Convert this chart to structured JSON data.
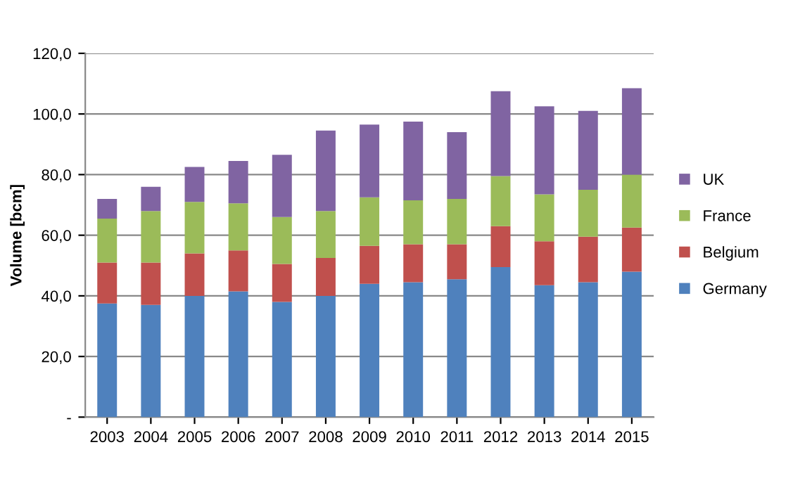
{
  "chart_data": {
    "type": "bar",
    "stacked": true,
    "ylabel": "Volume [bcm]",
    "categories": [
      "2003",
      "2004",
      "2005",
      "2006",
      "2007",
      "2008",
      "2009",
      "2010",
      "2011",
      "2012",
      "2013",
      "2014",
      "2015"
    ],
    "series": [
      {
        "name": "Germany",
        "color": "#4f81bd",
        "values": [
          37.5,
          37,
          40,
          41.5,
          38,
          40,
          44,
          44.5,
          45.5,
          49.5,
          43.5,
          44.5,
          48
        ]
      },
      {
        "name": "Belgium",
        "color": "#c0504d",
        "values": [
          13.5,
          14,
          14,
          13.5,
          12.5,
          12.5,
          12.5,
          12.5,
          11.5,
          13.5,
          14.5,
          15,
          14.5
        ]
      },
      {
        "name": "France",
        "color": "#9bbb59",
        "values": [
          14.5,
          17,
          17,
          15.5,
          15.5,
          15.5,
          16,
          14.5,
          15,
          16.5,
          15.5,
          15.5,
          17.5
        ]
      },
      {
        "name": "UK",
        "color": "#8064a2",
        "values": [
          6.5,
          8,
          11.5,
          14,
          20.5,
          26.5,
          24,
          26,
          22,
          28,
          29,
          26,
          28.5
        ]
      }
    ],
    "ylim": [
      0,
      120
    ],
    "yticks": [
      {
        "value": 0,
        "label": "-"
      },
      {
        "value": 20,
        "label": "20,0"
      },
      {
        "value": 40,
        "label": "40,0"
      },
      {
        "value": 60,
        "label": "60,0"
      },
      {
        "value": 80,
        "label": "80,0"
      },
      {
        "value": 100,
        "label": "100,0"
      },
      {
        "value": 120,
        "label": "120,0"
      }
    ],
    "grid": "y",
    "legend": "right"
  }
}
